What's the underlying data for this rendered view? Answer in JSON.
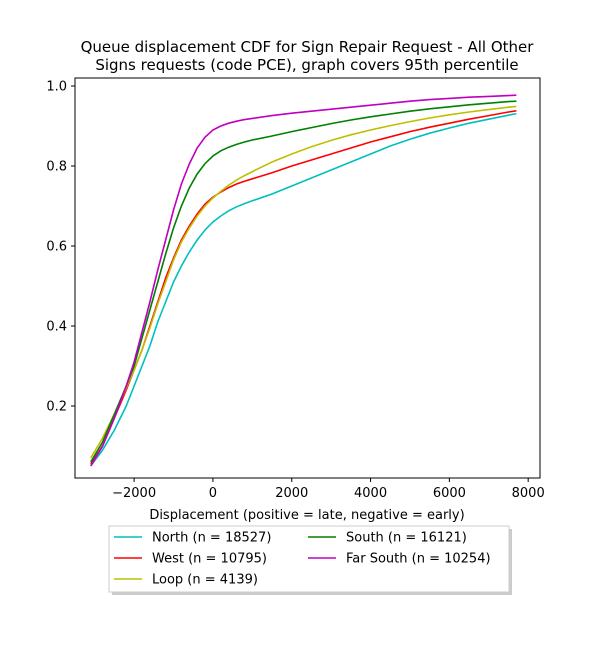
{
  "chart_data": {
    "type": "line",
    "title_lines": [
      "Queue displacement CDF for Sign Repair Request - All Other",
      "Signs  requests (code PCE), graph covers 95th percentile"
    ],
    "xlabel": "Displacement (positive = late, negative = early)",
    "ylabel": "",
    "xlim": [
      -3500,
      8300
    ],
    "ylim": [
      0.02,
      1.02
    ],
    "xticks": [
      -2000,
      0,
      2000,
      4000,
      6000,
      8000
    ],
    "xtick_labels": [
      "−2000",
      "0",
      "2000",
      "4000",
      "6000",
      "8000"
    ],
    "yticks": [
      0.2,
      0.4,
      0.6,
      0.8,
      1.0
    ],
    "ytick_labels": [
      "0.2",
      "0.4",
      "0.6",
      "0.8",
      "1.0"
    ],
    "grid": false,
    "legend_placement": "below",
    "series": [
      {
        "name": "North (n = 18527)",
        "color": "#00bfbf",
        "x": [
          -3100,
          -2800,
          -2500,
          -2200,
          -2000,
          -1800,
          -1600,
          -1400,
          -1200,
          -1000,
          -800,
          -600,
          -400,
          -200,
          0,
          200,
          400,
          600,
          800,
          1000,
          1500,
          2000,
          2500,
          3000,
          3500,
          4000,
          4500,
          5000,
          5500,
          6000,
          6500,
          7000,
          7500,
          7700
        ],
        "y": [
          0.05,
          0.09,
          0.14,
          0.2,
          0.25,
          0.3,
          0.35,
          0.41,
          0.46,
          0.51,
          0.55,
          0.585,
          0.615,
          0.64,
          0.66,
          0.675,
          0.688,
          0.698,
          0.706,
          0.713,
          0.73,
          0.75,
          0.77,
          0.79,
          0.81,
          0.83,
          0.85,
          0.867,
          0.882,
          0.895,
          0.907,
          0.917,
          0.927,
          0.931
        ]
      },
      {
        "name": "West (n = 10795)",
        "color": "#ff0000",
        "x": [
          -3100,
          -2800,
          -2500,
          -2200,
          -2000,
          -1800,
          -1600,
          -1400,
          -1200,
          -1000,
          -800,
          -600,
          -400,
          -200,
          0,
          200,
          400,
          600,
          800,
          1000,
          1500,
          2000,
          2500,
          3000,
          3500,
          4000,
          4500,
          5000,
          5500,
          6000,
          6500,
          7000,
          7500,
          7700
        ],
        "y": [
          0.055,
          0.1,
          0.17,
          0.24,
          0.29,
          0.34,
          0.4,
          0.46,
          0.52,
          0.57,
          0.615,
          0.65,
          0.68,
          0.705,
          0.722,
          0.735,
          0.746,
          0.755,
          0.762,
          0.768,
          0.783,
          0.8,
          0.815,
          0.83,
          0.845,
          0.86,
          0.873,
          0.886,
          0.897,
          0.907,
          0.917,
          0.926,
          0.935,
          0.938
        ]
      },
      {
        "name": "Loop (n = 4139)",
        "color": "#bfbf00",
        "x": [
          -3100,
          -2800,
          -2500,
          -2200,
          -2000,
          -1800,
          -1600,
          -1400,
          -1200,
          -1000,
          -800,
          -600,
          -400,
          -200,
          0,
          200,
          400,
          600,
          800,
          1000,
          1500,
          2000,
          2500,
          3000,
          3500,
          4000,
          4500,
          5000,
          5500,
          6000,
          6500,
          7000,
          7500,
          7700
        ],
        "y": [
          0.07,
          0.12,
          0.18,
          0.245,
          0.29,
          0.34,
          0.395,
          0.455,
          0.51,
          0.565,
          0.61,
          0.645,
          0.675,
          0.7,
          0.72,
          0.737,
          0.752,
          0.765,
          0.776,
          0.786,
          0.81,
          0.83,
          0.848,
          0.864,
          0.878,
          0.89,
          0.901,
          0.911,
          0.92,
          0.928,
          0.935,
          0.941,
          0.947,
          0.949
        ]
      },
      {
        "name": "South (n = 16121)",
        "color": "#008000",
        "x": [
          -3100,
          -2800,
          -2500,
          -2200,
          -2000,
          -1800,
          -1600,
          -1400,
          -1200,
          -1000,
          -800,
          -600,
          -400,
          -200,
          0,
          200,
          400,
          600,
          800,
          1000,
          1500,
          2000,
          2500,
          3000,
          3500,
          4000,
          4500,
          5000,
          5500,
          6000,
          6500,
          7000,
          7500,
          7700
        ],
        "y": [
          0.06,
          0.11,
          0.18,
          0.25,
          0.3,
          0.37,
          0.44,
          0.51,
          0.58,
          0.645,
          0.7,
          0.745,
          0.78,
          0.806,
          0.825,
          0.838,
          0.847,
          0.854,
          0.86,
          0.865,
          0.875,
          0.886,
          0.896,
          0.906,
          0.915,
          0.923,
          0.93,
          0.937,
          0.943,
          0.948,
          0.953,
          0.957,
          0.961,
          0.962
        ]
      },
      {
        "name": "Far South (n = 10254)",
        "color": "#bf00bf",
        "x": [
          -3100,
          -2800,
          -2500,
          -2200,
          -2000,
          -1800,
          -1600,
          -1400,
          -1200,
          -1000,
          -800,
          -600,
          -400,
          -200,
          0,
          200,
          400,
          600,
          800,
          1000,
          1500,
          2000,
          2500,
          3000,
          3500,
          4000,
          4500,
          5000,
          5500,
          6000,
          6500,
          7000,
          7500,
          7700
        ],
        "y": [
          0.05,
          0.1,
          0.17,
          0.25,
          0.31,
          0.385,
          0.46,
          0.54,
          0.615,
          0.69,
          0.755,
          0.805,
          0.845,
          0.872,
          0.89,
          0.9,
          0.907,
          0.912,
          0.916,
          0.919,
          0.926,
          0.932,
          0.937,
          0.942,
          0.947,
          0.952,
          0.957,
          0.962,
          0.966,
          0.969,
          0.972,
          0.974,
          0.976,
          0.977
        ]
      }
    ]
  }
}
